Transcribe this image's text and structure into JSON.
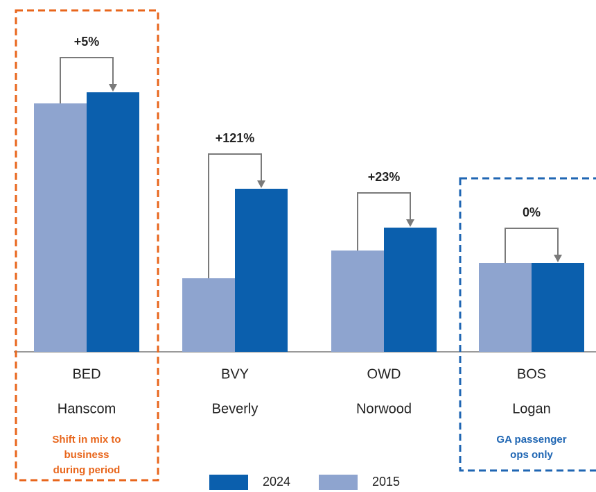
{
  "chart_data": {
    "type": "bar",
    "categories": [
      "BED",
      "BVY",
      "OWD",
      "BOS"
    ],
    "category_names": [
      "Hanscom",
      "Beverly",
      "Norwood",
      "Logan"
    ],
    "series": [
      {
        "name": "2015",
        "color": "#8ea4cf",
        "values": [
          358,
          106,
          146,
          128
        ]
      },
      {
        "name": "2024",
        "color": "#0b5fad",
        "values": [
          374,
          235,
          179,
          128
        ]
      }
    ],
    "annotations": [
      "+5%",
      "+121%",
      "+23%",
      "0%"
    ],
    "ylim": [
      0,
      400
    ],
    "notes": [
      {
        "color": "#e8661c",
        "lines": [
          "Shift in mix to",
          "business",
          "during period"
        ]
      },
      {
        "color": "#1f66b3",
        "lines": [
          "GA passenger",
          "ops only"
        ]
      }
    ]
  }
}
